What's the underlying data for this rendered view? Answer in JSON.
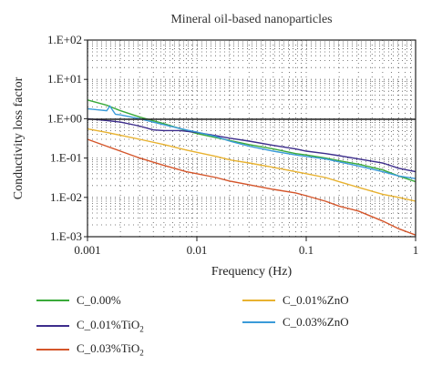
{
  "chart_data": {
    "type": "line",
    "title": "Mineral oil-based nanoparticles",
    "xlabel": "Frequency (Hz)",
    "ylabel": "Conductivity loss factor",
    "xscale": "log",
    "yscale": "log",
    "xlim": [
      0.001,
      1
    ],
    "ylim": [
      0.001,
      100
    ],
    "xticks": [
      {
        "value": 0.001,
        "label": "0.001"
      },
      {
        "value": 0.01,
        "label": "0.01"
      },
      {
        "value": 0.1,
        "label": "0.1"
      },
      {
        "value": 1,
        "label": "1"
      }
    ],
    "yticks": [
      {
        "value": 100,
        "label": "1.E+02"
      },
      {
        "value": 10,
        "label": "1.E+01"
      },
      {
        "value": 1,
        "label": "1.E+00"
      },
      {
        "value": 0.1,
        "label": "1.E-01"
      },
      {
        "value": 0.01,
        "label": "1.E-02"
      },
      {
        "value": 0.001,
        "label": "1.E-03"
      }
    ],
    "grid": "dotted",
    "legend_position": "bottom",
    "series": [
      {
        "name": "C_0.00%",
        "color": "#3aaa3a",
        "points": [
          [
            0.001,
            3.0
          ],
          [
            0.0015,
            2.2
          ],
          [
            0.002,
            1.6
          ],
          [
            0.003,
            1.1
          ],
          [
            0.005,
            0.75
          ],
          [
            0.008,
            0.5
          ],
          [
            0.01,
            0.42
          ],
          [
            0.015,
            0.33
          ],
          [
            0.02,
            0.28
          ],
          [
            0.03,
            0.22
          ],
          [
            0.05,
            0.17
          ],
          [
            0.08,
            0.13
          ],
          [
            0.1,
            0.12
          ],
          [
            0.15,
            0.1
          ],
          [
            0.2,
            0.085
          ],
          [
            0.3,
            0.07
          ],
          [
            0.5,
            0.05
          ],
          [
            0.7,
            0.035
          ],
          [
            1,
            0.025
          ]
        ]
      },
      {
        "name": "C_0.01%TiO2",
        "color": "#3d2d8c",
        "points": [
          [
            0.001,
            1.0
          ],
          [
            0.0015,
            0.9
          ],
          [
            0.002,
            0.82
          ],
          [
            0.003,
            0.65
          ],
          [
            0.004,
            0.52
          ],
          [
            0.005,
            0.5
          ],
          [
            0.007,
            0.5
          ],
          [
            0.01,
            0.45
          ],
          [
            0.015,
            0.37
          ],
          [
            0.02,
            0.32
          ],
          [
            0.03,
            0.27
          ],
          [
            0.05,
            0.21
          ],
          [
            0.08,
            0.17
          ],
          [
            0.1,
            0.15
          ],
          [
            0.15,
            0.13
          ],
          [
            0.2,
            0.115
          ],
          [
            0.3,
            0.095
          ],
          [
            0.5,
            0.075
          ],
          [
            0.7,
            0.055
          ],
          [
            1,
            0.045
          ]
        ]
      },
      {
        "name": "C_0.03%TiO2",
        "color": "#d4552a",
        "points": [
          [
            0.001,
            0.3
          ],
          [
            0.0015,
            0.2
          ],
          [
            0.002,
            0.15
          ],
          [
            0.003,
            0.1
          ],
          [
            0.005,
            0.065
          ],
          [
            0.008,
            0.045
          ],
          [
            0.01,
            0.04
          ],
          [
            0.015,
            0.032
          ],
          [
            0.02,
            0.026
          ],
          [
            0.03,
            0.021
          ],
          [
            0.05,
            0.016
          ],
          [
            0.08,
            0.013
          ],
          [
            0.1,
            0.011
          ],
          [
            0.15,
            0.008
          ],
          [
            0.2,
            0.006
          ],
          [
            0.3,
            0.0045
          ],
          [
            0.5,
            0.0025
          ],
          [
            0.7,
            0.0016
          ],
          [
            1,
            0.0011
          ]
        ]
      },
      {
        "name": "C_0.01%ZnO",
        "color": "#e8b230",
        "points": [
          [
            0.001,
            0.55
          ],
          [
            0.0015,
            0.45
          ],
          [
            0.002,
            0.38
          ],
          [
            0.003,
            0.3
          ],
          [
            0.005,
            0.22
          ],
          [
            0.008,
            0.16
          ],
          [
            0.01,
            0.14
          ],
          [
            0.015,
            0.11
          ],
          [
            0.02,
            0.09
          ],
          [
            0.03,
            0.075
          ],
          [
            0.05,
            0.058
          ],
          [
            0.08,
            0.045
          ],
          [
            0.1,
            0.04
          ],
          [
            0.15,
            0.032
          ],
          [
            0.2,
            0.025
          ],
          [
            0.3,
            0.018
          ],
          [
            0.5,
            0.012
          ],
          [
            0.7,
            0.01
          ],
          [
            1,
            0.008
          ]
        ]
      },
      {
        "name": "C_0.03%ZnO",
        "color": "#3a9bd9",
        "points": [
          [
            0.001,
            1.8
          ],
          [
            0.0012,
            1.7
          ],
          [
            0.0015,
            1.6
          ],
          [
            0.0016,
            2.1
          ],
          [
            0.0018,
            1.3
          ],
          [
            0.002,
            1.25
          ],
          [
            0.003,
            1.0
          ],
          [
            0.005,
            0.7
          ],
          [
            0.008,
            0.52
          ],
          [
            0.01,
            0.46
          ],
          [
            0.015,
            0.35
          ],
          [
            0.02,
            0.27
          ],
          [
            0.03,
            0.2
          ],
          [
            0.05,
            0.15
          ],
          [
            0.08,
            0.12
          ],
          [
            0.1,
            0.11
          ],
          [
            0.15,
            0.095
          ],
          [
            0.2,
            0.08
          ],
          [
            0.3,
            0.063
          ],
          [
            0.5,
            0.045
          ],
          [
            0.7,
            0.035
          ],
          [
            1,
            0.03
          ]
        ]
      }
    ]
  }
}
